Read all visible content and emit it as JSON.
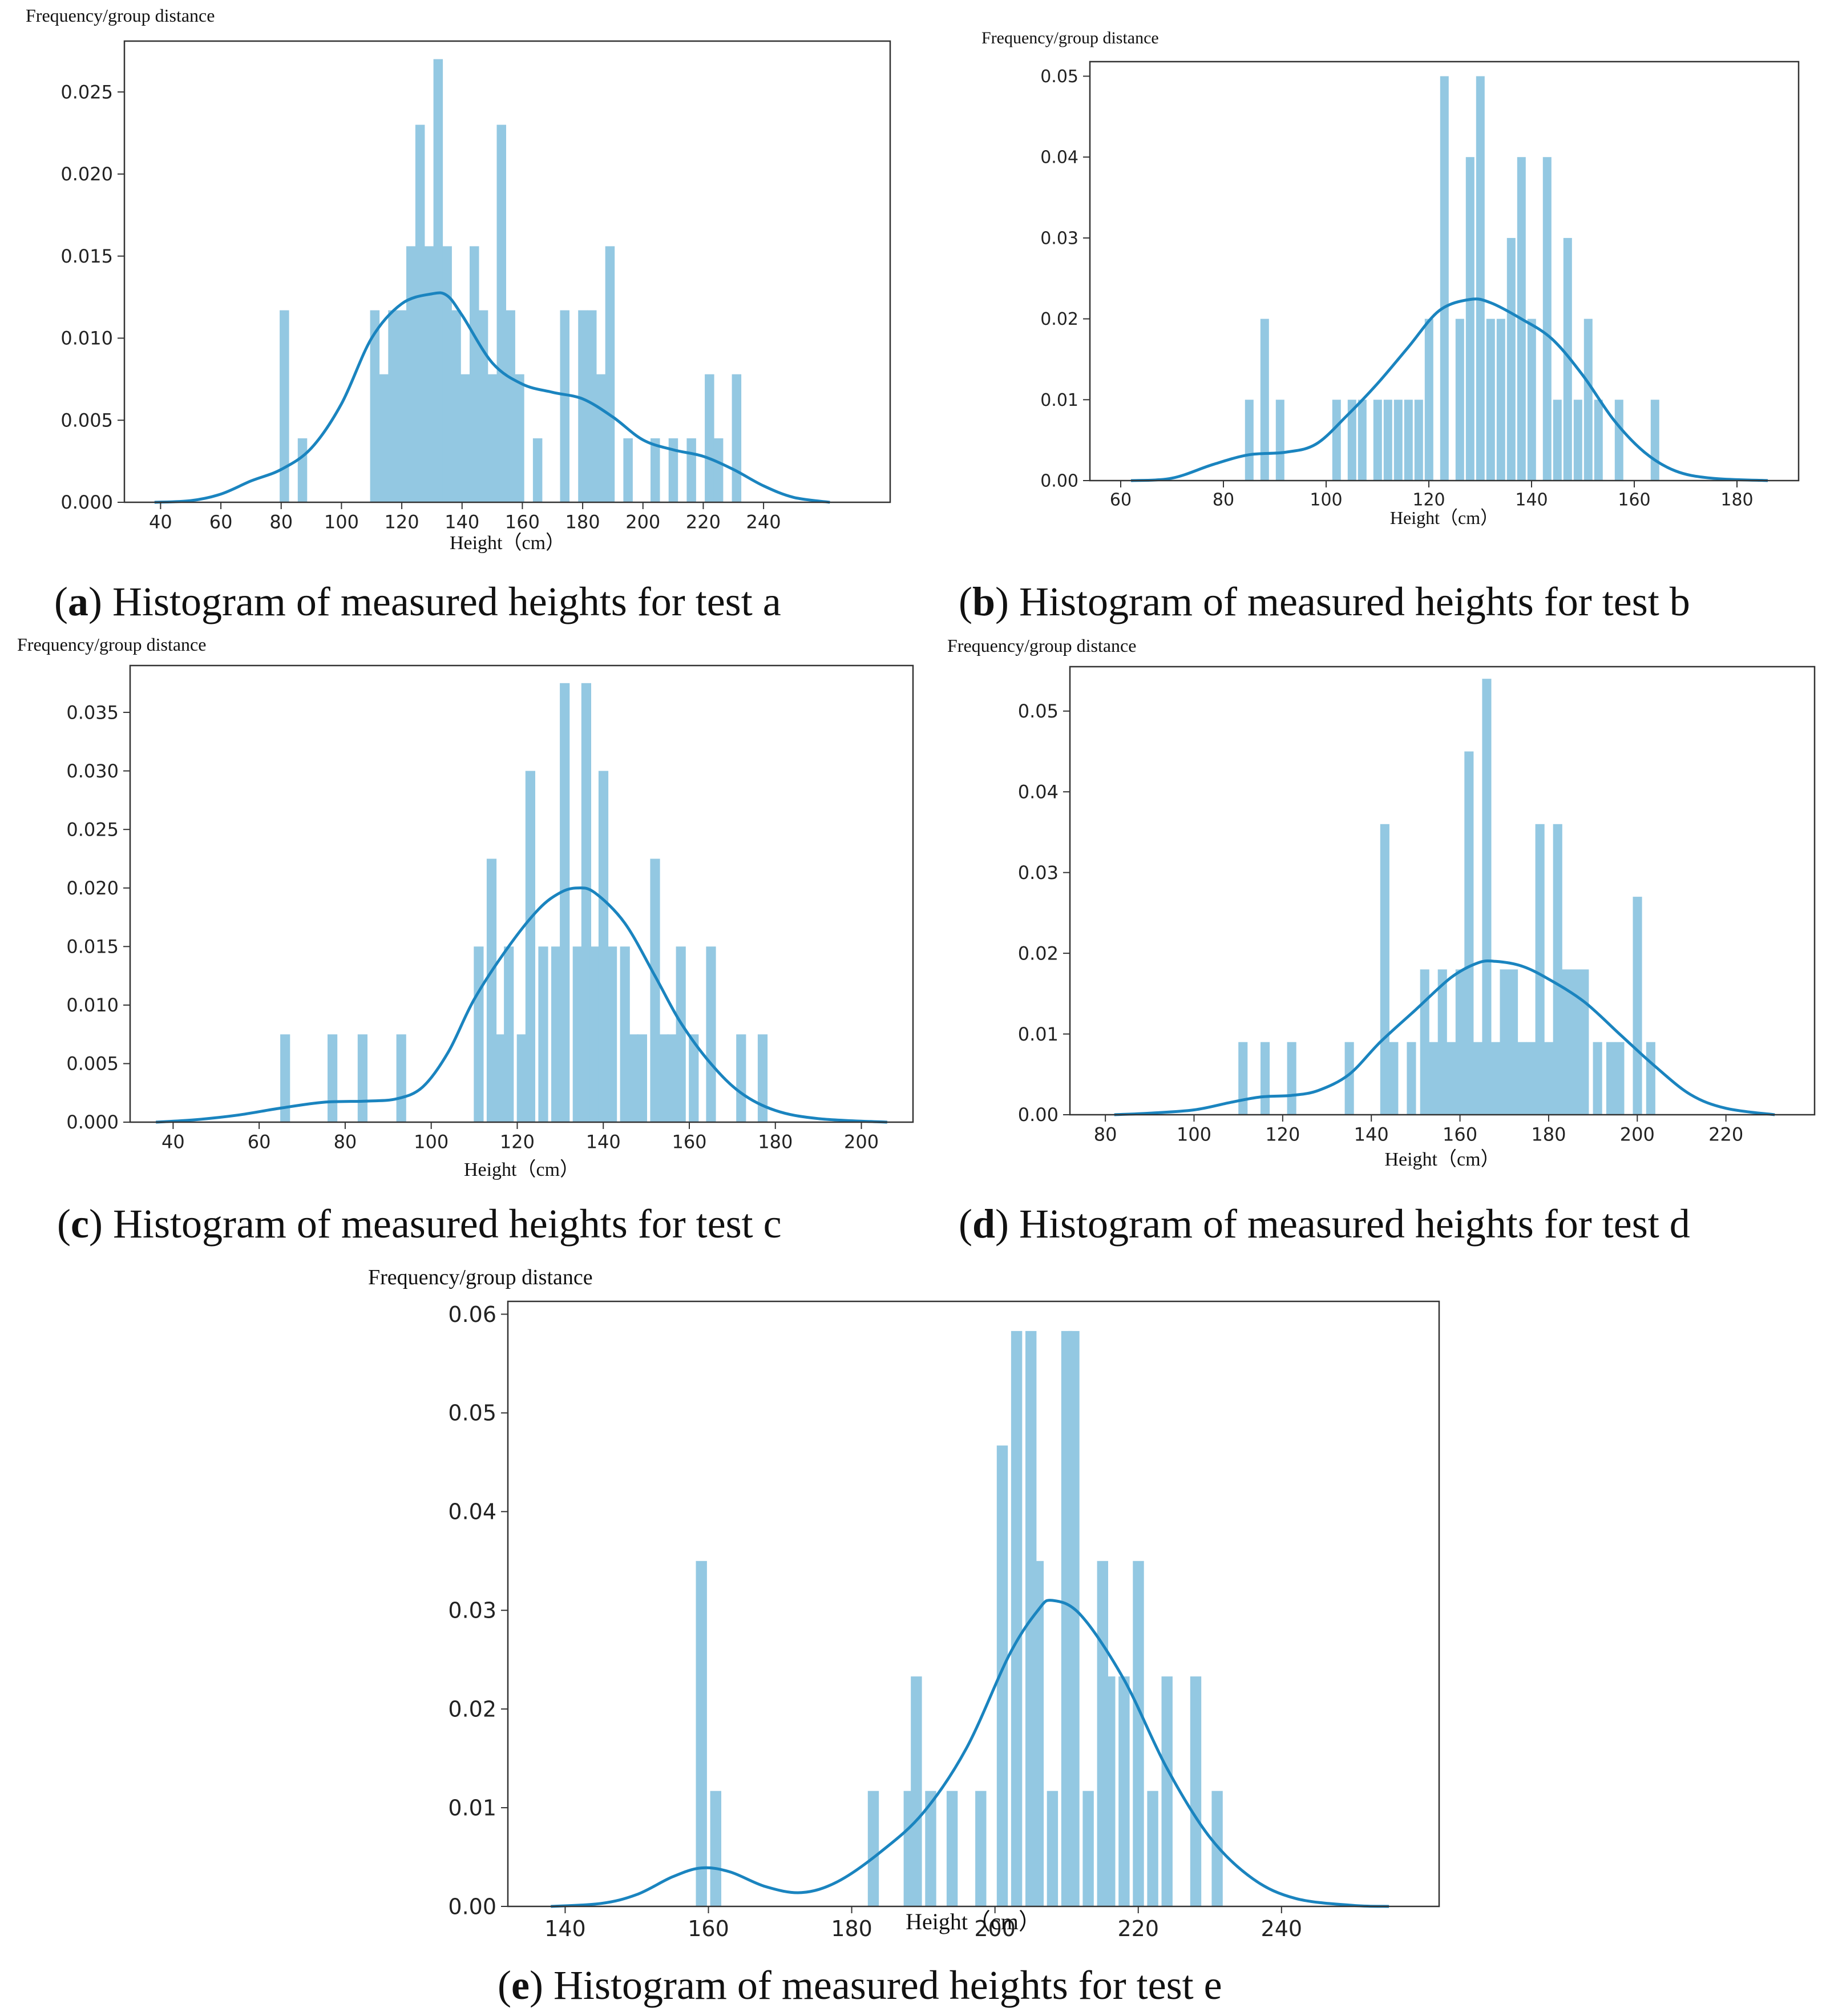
{
  "colors": {
    "bar": "#93c8e2",
    "kde": "#1a84bf",
    "axis": "#333333"
  },
  "chart_data": [
    {
      "type": "bar",
      "id": "a",
      "ylabel": "Frequency/group distance",
      "xlabel": "Height（cm）",
      "caption_letter": "a",
      "caption_text": " Histogram of measured heights for test a",
      "xlim": [
        28,
        282
      ],
      "ylim": [
        0,
        0.0281
      ],
      "xticks": [
        40,
        60,
        80,
        100,
        120,
        140,
        160,
        180,
        200,
        220,
        240
      ],
      "yticks": [
        0.0,
        0.005,
        0.01,
        0.015,
        0.02,
        0.025
      ],
      "yformat": 3,
      "bin_width": 3.0,
      "bars": [
        [
          81,
          0.0117
        ],
        [
          87,
          0.0039
        ],
        [
          111,
          0.0117
        ],
        [
          114,
          0.0078
        ],
        [
          117,
          0.0117
        ],
        [
          120,
          0.0117
        ],
        [
          123,
          0.0156
        ],
        [
          126,
          0.023
        ],
        [
          129,
          0.0156
        ],
        [
          132,
          0.027
        ],
        [
          135,
          0.0156
        ],
        [
          138,
          0.0117
        ],
        [
          141,
          0.0078
        ],
        [
          144,
          0.0156
        ],
        [
          147,
          0.0117
        ],
        [
          150,
          0.0078
        ],
        [
          153,
          0.023
        ],
        [
          156,
          0.0117
        ],
        [
          159,
          0.0078
        ],
        [
          165,
          0.0039
        ],
        [
          174,
          0.0117
        ],
        [
          180,
          0.0117
        ],
        [
          183,
          0.0117
        ],
        [
          186,
          0.0078
        ],
        [
          189,
          0.0156
        ],
        [
          195,
          0.0039
        ],
        [
          204,
          0.0039
        ],
        [
          210,
          0.0039
        ],
        [
          216,
          0.0039
        ],
        [
          222,
          0.0078
        ],
        [
          225,
          0.0039
        ],
        [
          231,
          0.0078
        ]
      ],
      "kde": [
        [
          38,
          0.0
        ],
        [
          50,
          0.0001
        ],
        [
          60,
          0.0005
        ],
        [
          70,
          0.0013
        ],
        [
          80,
          0.002
        ],
        [
          90,
          0.0033
        ],
        [
          100,
          0.006
        ],
        [
          110,
          0.01
        ],
        [
          120,
          0.0121
        ],
        [
          130,
          0.0127
        ],
        [
          135,
          0.0126
        ],
        [
          140,
          0.0114
        ],
        [
          150,
          0.0085
        ],
        [
          160,
          0.0072
        ],
        [
          170,
          0.0067
        ],
        [
          180,
          0.0063
        ],
        [
          190,
          0.0052
        ],
        [
          200,
          0.0038
        ],
        [
          210,
          0.0032
        ],
        [
          220,
          0.0028
        ],
        [
          230,
          0.002
        ],
        [
          240,
          0.001
        ],
        [
          250,
          0.0003
        ],
        [
          262,
          0.0
        ]
      ]
    },
    {
      "type": "bar",
      "id": "b",
      "ylabel": "Frequency/group distance",
      "xlabel": "Height（cm）",
      "caption_letter": "b",
      "caption_text": " Histogram of measured heights for test b",
      "xlim": [
        54,
        192
      ],
      "ylim": [
        0,
        0.0518
      ],
      "xticks": [
        60,
        80,
        100,
        120,
        140,
        160,
        180
      ],
      "yticks": [
        0.0,
        0.01,
        0.02,
        0.03,
        0.04,
        0.05
      ],
      "yformat": 2,
      "bin_width": 1.6,
      "bars": [
        [
          85,
          0.01
        ],
        [
          88,
          0.02
        ],
        [
          91,
          0.01
        ],
        [
          102,
          0.01
        ],
        [
          105,
          0.01
        ],
        [
          107,
          0.01
        ],
        [
          110,
          0.01
        ],
        [
          112,
          0.01
        ],
        [
          114,
          0.01
        ],
        [
          116,
          0.01
        ],
        [
          118,
          0.01
        ],
        [
          120,
          0.02
        ],
        [
          123,
          0.05
        ],
        [
          126,
          0.02
        ],
        [
          128,
          0.04
        ],
        [
          130,
          0.05
        ],
        [
          132,
          0.02
        ],
        [
          134,
          0.02
        ],
        [
          136,
          0.03
        ],
        [
          138,
          0.04
        ],
        [
          140,
          0.02
        ],
        [
          143,
          0.04
        ],
        [
          145,
          0.01
        ],
        [
          147,
          0.03
        ],
        [
          149,
          0.01
        ],
        [
          151,
          0.02
        ],
        [
          153,
          0.01
        ],
        [
          157,
          0.01
        ],
        [
          164,
          0.01
        ]
      ],
      "kde": [
        [
          62,
          0.0
        ],
        [
          70,
          0.0003
        ],
        [
          78,
          0.002
        ],
        [
          85,
          0.0032
        ],
        [
          92,
          0.0035
        ],
        [
          98,
          0.0045
        ],
        [
          104,
          0.008
        ],
        [
          110,
          0.012
        ],
        [
          116,
          0.0165
        ],
        [
          122,
          0.021
        ],
        [
          128,
          0.0224
        ],
        [
          132,
          0.022
        ],
        [
          138,
          0.02
        ],
        [
          144,
          0.0175
        ],
        [
          150,
          0.013
        ],
        [
          156,
          0.0075
        ],
        [
          162,
          0.0035
        ],
        [
          168,
          0.0012
        ],
        [
          175,
          0.0003
        ],
        [
          186,
          0.0
        ]
      ]
    },
    {
      "type": "bar",
      "id": "c",
      "ylabel": "Frequency/group distance",
      "xlabel": "Height（cm）",
      "caption_letter": "c",
      "caption_text": " Histogram of measured heights for test c",
      "xlim": [
        30,
        212
      ],
      "ylim": [
        0,
        0.039
      ],
      "xticks": [
        40,
        60,
        80,
        100,
        120,
        140,
        160,
        180,
        200
      ],
      "yticks": [
        0.0,
        0.005,
        0.01,
        0.015,
        0.02,
        0.025,
        0.03,
        0.035
      ],
      "yformat": 3,
      "bin_width": 2.2,
      "bars": [
        [
          66,
          0.0075
        ],
        [
          77,
          0.0075
        ],
        [
          84,
          0.0075
        ],
        [
          93,
          0.0075
        ],
        [
          111,
          0.015
        ],
        [
          114,
          0.0225
        ],
        [
          116,
          0.0075
        ],
        [
          118,
          0.015
        ],
        [
          121,
          0.0075
        ],
        [
          123,
          0.03
        ],
        [
          126,
          0.015
        ],
        [
          129,
          0.015
        ],
        [
          131,
          0.0375
        ],
        [
          134,
          0.015
        ],
        [
          136,
          0.0375
        ],
        [
          138,
          0.015
        ],
        [
          140,
          0.03
        ],
        [
          142,
          0.015
        ],
        [
          145,
          0.015
        ],
        [
          147,
          0.0075
        ],
        [
          149,
          0.0075
        ],
        [
          152,
          0.0225
        ],
        [
          154,
          0.0075
        ],
        [
          156,
          0.0075
        ],
        [
          158,
          0.015
        ],
        [
          161,
          0.0075
        ],
        [
          165,
          0.015
        ],
        [
          172,
          0.0075
        ],
        [
          177,
          0.0075
        ]
      ],
      "kde": [
        [
          36,
          0.0
        ],
        [
          45,
          0.0002
        ],
        [
          55,
          0.0006
        ],
        [
          65,
          0.0012
        ],
        [
          75,
          0.0017
        ],
        [
          85,
          0.0018
        ],
        [
          92,
          0.002
        ],
        [
          98,
          0.003
        ],
        [
          104,
          0.006
        ],
        [
          110,
          0.0105
        ],
        [
          118,
          0.015
        ],
        [
          125,
          0.0182
        ],
        [
          130,
          0.0196
        ],
        [
          134,
          0.02
        ],
        [
          138,
          0.0196
        ],
        [
          145,
          0.017
        ],
        [
          152,
          0.0125
        ],
        [
          158,
          0.0085
        ],
        [
          165,
          0.005
        ],
        [
          172,
          0.0025
        ],
        [
          180,
          0.001
        ],
        [
          190,
          0.0003
        ],
        [
          206,
          0.0
        ]
      ]
    },
    {
      "type": "bar",
      "id": "d",
      "ylabel": "Frequency/group distance",
      "xlabel": "Height（cm）",
      "caption_letter": "d",
      "caption_text": " Histogram of measured heights for test d",
      "xlim": [
        72,
        240
      ],
      "ylim": [
        0,
        0.0555
      ],
      "xticks": [
        80,
        100,
        120,
        140,
        160,
        180,
        200,
        220
      ],
      "yticks": [
        0.0,
        0.01,
        0.02,
        0.03,
        0.04,
        0.05
      ],
      "yformat": 2,
      "bin_width": 2.0,
      "bars": [
        [
          111,
          0.009
        ],
        [
          116,
          0.009
        ],
        [
          122,
          0.009
        ],
        [
          135,
          0.009
        ],
        [
          143,
          0.036
        ],
        [
          145,
          0.009
        ],
        [
          149,
          0.009
        ],
        [
          152,
          0.018
        ],
        [
          154,
          0.009
        ],
        [
          156,
          0.018
        ],
        [
          158,
          0.009
        ],
        [
          160,
          0.018
        ],
        [
          162,
          0.045
        ],
        [
          164,
          0.009
        ],
        [
          166,
          0.054
        ],
        [
          168,
          0.009
        ],
        [
          170,
          0.018
        ],
        [
          172,
          0.018
        ],
        [
          174,
          0.009
        ],
        [
          176,
          0.009
        ],
        [
          178,
          0.036
        ],
        [
          180,
          0.009
        ],
        [
          182,
          0.036
        ],
        [
          184,
          0.018
        ],
        [
          186,
          0.018
        ],
        [
          188,
          0.018
        ],
        [
          191,
          0.009
        ],
        [
          194,
          0.009
        ],
        [
          196,
          0.009
        ],
        [
          200,
          0.027
        ],
        [
          203,
          0.009
        ]
      ],
      "kde": [
        [
          82,
          0.0
        ],
        [
          90,
          0.0002
        ],
        [
          100,
          0.0006
        ],
        [
          108,
          0.0015
        ],
        [
          115,
          0.0022
        ],
        [
          122,
          0.0024
        ],
        [
          128,
          0.003
        ],
        [
          135,
          0.005
        ],
        [
          142,
          0.009
        ],
        [
          150,
          0.013
        ],
        [
          158,
          0.017
        ],
        [
          164,
          0.0188
        ],
        [
          168,
          0.019
        ],
        [
          174,
          0.0184
        ],
        [
          180,
          0.0168
        ],
        [
          188,
          0.014
        ],
        [
          196,
          0.01
        ],
        [
          204,
          0.006
        ],
        [
          212,
          0.0025
        ],
        [
          220,
          0.0008
        ],
        [
          231,
          0.0
        ]
      ]
    },
    {
      "type": "bar",
      "id": "e",
      "ylabel": "Frequency/group distance",
      "xlabel": "Height（cm）",
      "caption_letter": "e",
      "caption_text": " Histogram of measured heights for test e",
      "xlim": [
        132,
        262
      ],
      "ylim": [
        0,
        0.0613
      ],
      "xticks": [
        140,
        160,
        180,
        200,
        220,
        240
      ],
      "yticks": [
        0.0,
        0.01,
        0.02,
        0.03,
        0.04,
        0.05,
        0.06
      ],
      "yformat": 2,
      "bin_width": 1.5,
      "bars": [
        [
          159,
          0.035
        ],
        [
          161,
          0.0117
        ],
        [
          183,
          0.0117
        ],
        [
          188,
          0.0117
        ],
        [
          189,
          0.0233
        ],
        [
          191,
          0.0117
        ],
        [
          194,
          0.0117
        ],
        [
          198,
          0.0117
        ],
        [
          201,
          0.0467
        ],
        [
          203,
          0.0583
        ],
        [
          205,
          0.0583
        ],
        [
          206,
          0.035
        ],
        [
          208,
          0.0117
        ],
        [
          210,
          0.0583
        ],
        [
          211,
          0.0583
        ],
        [
          213,
          0.0117
        ],
        [
          215,
          0.035
        ],
        [
          216,
          0.0233
        ],
        [
          218,
          0.0233
        ],
        [
          220,
          0.035
        ],
        [
          222,
          0.0117
        ],
        [
          224,
          0.0233
        ],
        [
          228,
          0.0233
        ],
        [
          231,
          0.0117
        ]
      ],
      "kde": [
        [
          138,
          0.0
        ],
        [
          145,
          0.0003
        ],
        [
          150,
          0.0012
        ],
        [
          155,
          0.003
        ],
        [
          159,
          0.0039
        ],
        [
          163,
          0.0035
        ],
        [
          168,
          0.002
        ],
        [
          173,
          0.0014
        ],
        [
          178,
          0.0025
        ],
        [
          184,
          0.0055
        ],
        [
          190,
          0.0095
        ],
        [
          196,
          0.016
        ],
        [
          202,
          0.0255
        ],
        [
          206,
          0.03
        ],
        [
          208,
          0.031
        ],
        [
          212,
          0.0295
        ],
        [
          218,
          0.023
        ],
        [
          224,
          0.014
        ],
        [
          230,
          0.007
        ],
        [
          236,
          0.0028
        ],
        [
          242,
          0.0008
        ],
        [
          250,
          0.0001
        ],
        [
          255,
          0.0
        ]
      ]
    }
  ]
}
